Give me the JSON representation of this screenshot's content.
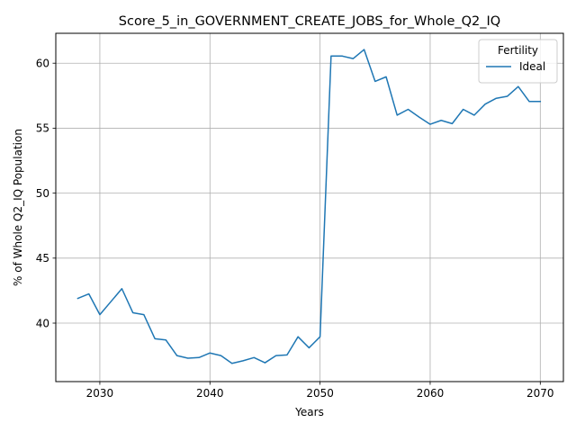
{
  "chart_data": {
    "type": "line",
    "title": "Score_5_in_GOVERNMENT_CREATE_JOBS_for_Whole_Q2_IQ",
    "xlabel": "Years",
    "ylabel": "% of Whole Q2_IQ Population",
    "xlim": [
      2026.0,
      2072.1
    ],
    "ylim": [
      35.5,
      62.3
    ],
    "xticks": [
      2030,
      2040,
      2050,
      2060,
      2070
    ],
    "yticks": [
      40,
      45,
      50,
      55,
      60
    ],
    "grid": true,
    "legend": {
      "title": "Fertility",
      "placement": "top-right"
    },
    "series": [
      {
        "name": "Ideal",
        "color": "#1f77b4",
        "x": [
          2028,
          2029,
          2030,
          2031,
          2032,
          2033,
          2034,
          2035,
          2036,
          2037,
          2038,
          2039,
          2040,
          2041,
          2042,
          2043,
          2044,
          2045,
          2046,
          2047,
          2048,
          2049,
          2050,
          2051,
          2052,
          2053,
          2054,
          2055,
          2056,
          2057,
          2058,
          2059,
          2060,
          2061,
          2062,
          2063,
          2064,
          2065,
          2066,
          2067,
          2068,
          2069,
          2070
        ],
        "y": [
          41.9,
          42.25,
          40.65,
          41.65,
          42.65,
          40.8,
          40.65,
          38.8,
          38.7,
          37.5,
          37.3,
          37.35,
          37.7,
          37.5,
          36.9,
          37.1,
          37.35,
          36.95,
          37.5,
          37.55,
          38.95,
          38.1,
          38.95,
          60.55,
          60.55,
          60.35,
          61.05,
          58.6,
          58.95,
          56.0,
          56.45,
          55.85,
          55.3,
          55.6,
          55.35,
          56.45,
          56.0,
          56.85,
          57.3,
          57.45,
          58.2,
          57.05,
          57.05
        ]
      }
    ]
  }
}
